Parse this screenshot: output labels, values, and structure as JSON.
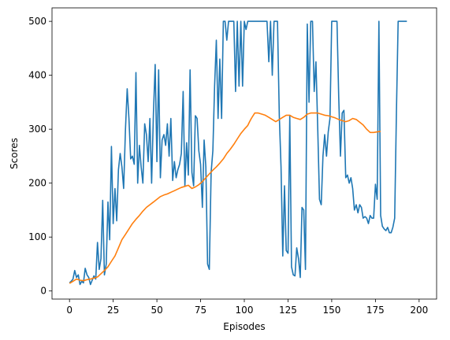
{
  "chart_data": {
    "type": "line",
    "xlabel": "Episodes",
    "ylabel": "Scores",
    "xlim": [
      -10,
      210
    ],
    "ylim": [
      -15,
      525
    ],
    "xticks": [
      0,
      25,
      50,
      75,
      100,
      125,
      150,
      175,
      200
    ],
    "yticks": [
      0,
      100,
      200,
      300,
      400,
      500
    ],
    "grid": false,
    "series": [
      {
        "color": "#1f77b4",
        "points": [
          [
            0,
            15
          ],
          [
            1,
            18
          ],
          [
            2,
            22
          ],
          [
            3,
            38
          ],
          [
            4,
            25
          ],
          [
            5,
            30
          ],
          [
            6,
            12
          ],
          [
            7,
            18
          ],
          [
            8,
            15
          ],
          [
            9,
            42
          ],
          [
            10,
            30
          ],
          [
            11,
            25
          ],
          [
            12,
            12
          ],
          [
            13,
            20
          ],
          [
            14,
            28
          ],
          [
            15,
            22
          ],
          [
            16,
            90
          ],
          [
            17,
            40
          ],
          [
            18,
            60
          ],
          [
            19,
            168
          ],
          [
            20,
            30
          ],
          [
            21,
            50
          ],
          [
            22,
            165
          ],
          [
            23,
            95
          ],
          [
            24,
            268
          ],
          [
            25,
            125
          ],
          [
            26,
            190
          ],
          [
            27,
            130
          ],
          [
            28,
            225
          ],
          [
            29,
            255
          ],
          [
            30,
            230
          ],
          [
            31,
            190
          ],
          [
            32,
            300
          ],
          [
            33,
            375
          ],
          [
            34,
            320
          ],
          [
            35,
            245
          ],
          [
            36,
            250
          ],
          [
            37,
            235
          ],
          [
            38,
            405
          ],
          [
            39,
            200
          ],
          [
            40,
            270
          ],
          [
            41,
            230
          ],
          [
            42,
            200
          ],
          [
            43,
            310
          ],
          [
            44,
            290
          ],
          [
            45,
            240
          ],
          [
            46,
            320
          ],
          [
            47,
            200
          ],
          [
            48,
            330
          ],
          [
            49,
            420
          ],
          [
            50,
            240
          ],
          [
            51,
            410
          ],
          [
            52,
            210
          ],
          [
            53,
            280
          ],
          [
            54,
            290
          ],
          [
            55,
            270
          ],
          [
            56,
            310
          ],
          [
            57,
            250
          ],
          [
            58,
            320
          ],
          [
            59,
            205
          ],
          [
            60,
            240
          ],
          [
            61,
            210
          ],
          [
            62,
            225
          ],
          [
            63,
            235
          ],
          [
            64,
            255
          ],
          [
            65,
            370
          ],
          [
            66,
            195
          ],
          [
            67,
            275
          ],
          [
            68,
            215
          ],
          [
            69,
            410
          ],
          [
            70,
            220
          ],
          [
            71,
            195
          ],
          [
            72,
            325
          ],
          [
            73,
            320
          ],
          [
            74,
            260
          ],
          [
            75,
            235
          ],
          [
            76,
            155
          ],
          [
            77,
            280
          ],
          [
            78,
            230
          ],
          [
            79,
            50
          ],
          [
            80,
            40
          ],
          [
            81,
            220
          ],
          [
            82,
            260
          ],
          [
            83,
            380
          ],
          [
            84,
            465
          ],
          [
            85,
            320
          ],
          [
            86,
            430
          ],
          [
            87,
            320
          ],
          [
            88,
            500
          ],
          [
            89,
            500
          ],
          [
            90,
            465
          ],
          [
            91,
            500
          ],
          [
            92,
            500
          ],
          [
            93,
            500
          ],
          [
            94,
            500
          ],
          [
            95,
            370
          ],
          [
            96,
            500
          ],
          [
            97,
            380
          ],
          [
            98,
            500
          ],
          [
            99,
            380
          ],
          [
            100,
            500
          ],
          [
            101,
            485
          ],
          [
            102,
            500
          ],
          [
            103,
            500
          ],
          [
            104,
            500
          ],
          [
            105,
            500
          ],
          [
            106,
            500
          ],
          [
            107,
            500
          ],
          [
            108,
            500
          ],
          [
            109,
            500
          ],
          [
            110,
            500
          ],
          [
            111,
            500
          ],
          [
            112,
            500
          ],
          [
            113,
            500
          ],
          [
            114,
            425
          ],
          [
            115,
            500
          ],
          [
            116,
            400
          ],
          [
            117,
            500
          ],
          [
            118,
            500
          ],
          [
            119,
            500
          ],
          [
            120,
            325
          ],
          [
            121,
            230
          ],
          [
            122,
            65
          ],
          [
            123,
            195
          ],
          [
            124,
            75
          ],
          [
            125,
            70
          ],
          [
            126,
            325
          ],
          [
            127,
            45
          ],
          [
            128,
            30
          ],
          [
            129,
            28
          ],
          [
            130,
            80
          ],
          [
            131,
            60
          ],
          [
            132,
            25
          ],
          [
            133,
            155
          ],
          [
            134,
            150
          ],
          [
            135,
            40
          ],
          [
            136,
            495
          ],
          [
            137,
            350
          ],
          [
            138,
            500
          ],
          [
            139,
            500
          ],
          [
            140,
            370
          ],
          [
            141,
            425
          ],
          [
            142,
            300
          ],
          [
            143,
            170
          ],
          [
            144,
            160
          ],
          [
            145,
            250
          ],
          [
            146,
            290
          ],
          [
            147,
            250
          ],
          [
            148,
            295
          ],
          [
            149,
            320
          ],
          [
            150,
            500
          ],
          [
            151,
            500
          ],
          [
            152,
            500
          ],
          [
            153,
            500
          ],
          [
            154,
            360
          ],
          [
            155,
            250
          ],
          [
            156,
            330
          ],
          [
            157,
            335
          ],
          [
            158,
            210
          ],
          [
            159,
            215
          ],
          [
            160,
            200
          ],
          [
            161,
            210
          ],
          [
            162,
            190
          ],
          [
            163,
            150
          ],
          [
            164,
            160
          ],
          [
            165,
            145
          ],
          [
            166,
            160
          ],
          [
            167,
            155
          ],
          [
            168,
            135
          ],
          [
            169,
            138
          ],
          [
            170,
            135
          ],
          [
            171,
            125
          ],
          [
            172,
            140
          ],
          [
            173,
            135
          ],
          [
            174,
            135
          ],
          [
            175,
            198
          ],
          [
            176,
            170
          ],
          [
            177,
            500
          ],
          [
            178,
            140
          ],
          [
            179,
            120
          ],
          [
            180,
            115
          ],
          [
            181,
            112
          ],
          [
            182,
            118
          ],
          [
            183,
            108
          ],
          [
            184,
            108
          ],
          [
            185,
            118
          ],
          [
            186,
            135
          ],
          [
            187,
            330
          ],
          [
            188,
            500
          ],
          [
            189,
            500
          ],
          [
            190,
            500
          ],
          [
            191,
            500
          ],
          [
            192,
            500
          ],
          [
            193,
            500
          ]
        ]
      },
      {
        "color": "#ff7f0e",
        "points": [
          [
            0,
            14
          ],
          [
            2,
            18
          ],
          [
            4,
            22
          ],
          [
            6,
            20
          ],
          [
            8,
            19
          ],
          [
            10,
            21
          ],
          [
            12,
            22
          ],
          [
            14,
            24
          ],
          [
            16,
            26
          ],
          [
            18,
            32
          ],
          [
            20,
            38
          ],
          [
            22,
            45
          ],
          [
            24,
            55
          ],
          [
            26,
            65
          ],
          [
            28,
            80
          ],
          [
            30,
            95
          ],
          [
            32,
            105
          ],
          [
            34,
            115
          ],
          [
            36,
            125
          ],
          [
            38,
            133
          ],
          [
            40,
            140
          ],
          [
            42,
            148
          ],
          [
            44,
            155
          ],
          [
            46,
            160
          ],
          [
            48,
            165
          ],
          [
            50,
            170
          ],
          [
            52,
            175
          ],
          [
            54,
            178
          ],
          [
            56,
            180
          ],
          [
            58,
            183
          ],
          [
            60,
            186
          ],
          [
            62,
            189
          ],
          [
            64,
            192
          ],
          [
            66,
            194
          ],
          [
            68,
            196
          ],
          [
            70,
            190
          ],
          [
            72,
            193
          ],
          [
            74,
            197
          ],
          [
            76,
            203
          ],
          [
            78,
            210
          ],
          [
            80,
            217
          ],
          [
            82,
            224
          ],
          [
            84,
            230
          ],
          [
            86,
            237
          ],
          [
            88,
            245
          ],
          [
            90,
            255
          ],
          [
            92,
            263
          ],
          [
            94,
            272
          ],
          [
            96,
            282
          ],
          [
            98,
            292
          ],
          [
            100,
            300
          ],
          [
            102,
            307
          ],
          [
            103,
            314
          ],
          [
            104,
            320
          ],
          [
            106,
            330
          ],
          [
            108,
            330
          ],
          [
            110,
            328
          ],
          [
            112,
            326
          ],
          [
            114,
            322
          ],
          [
            116,
            318
          ],
          [
            118,
            314
          ],
          [
            120,
            318
          ],
          [
            122,
            322
          ],
          [
            124,
            326
          ],
          [
            126,
            326
          ],
          [
            128,
            322
          ],
          [
            130,
            320
          ],
          [
            132,
            318
          ],
          [
            134,
            322
          ],
          [
            136,
            328
          ],
          [
            138,
            330
          ],
          [
            140,
            330
          ],
          [
            142,
            330
          ],
          [
            144,
            328
          ],
          [
            146,
            326
          ],
          [
            148,
            325
          ],
          [
            150,
            323
          ],
          [
            152,
            321
          ],
          [
            154,
            318
          ],
          [
            156,
            316
          ],
          [
            158,
            314
          ],
          [
            160,
            316
          ],
          [
            162,
            320
          ],
          [
            164,
            318
          ],
          [
            166,
            313
          ],
          [
            168,
            308
          ],
          [
            170,
            300
          ],
          [
            172,
            294
          ],
          [
            174,
            294
          ],
          [
            176,
            295
          ],
          [
            178,
            296
          ]
        ]
      }
    ]
  }
}
